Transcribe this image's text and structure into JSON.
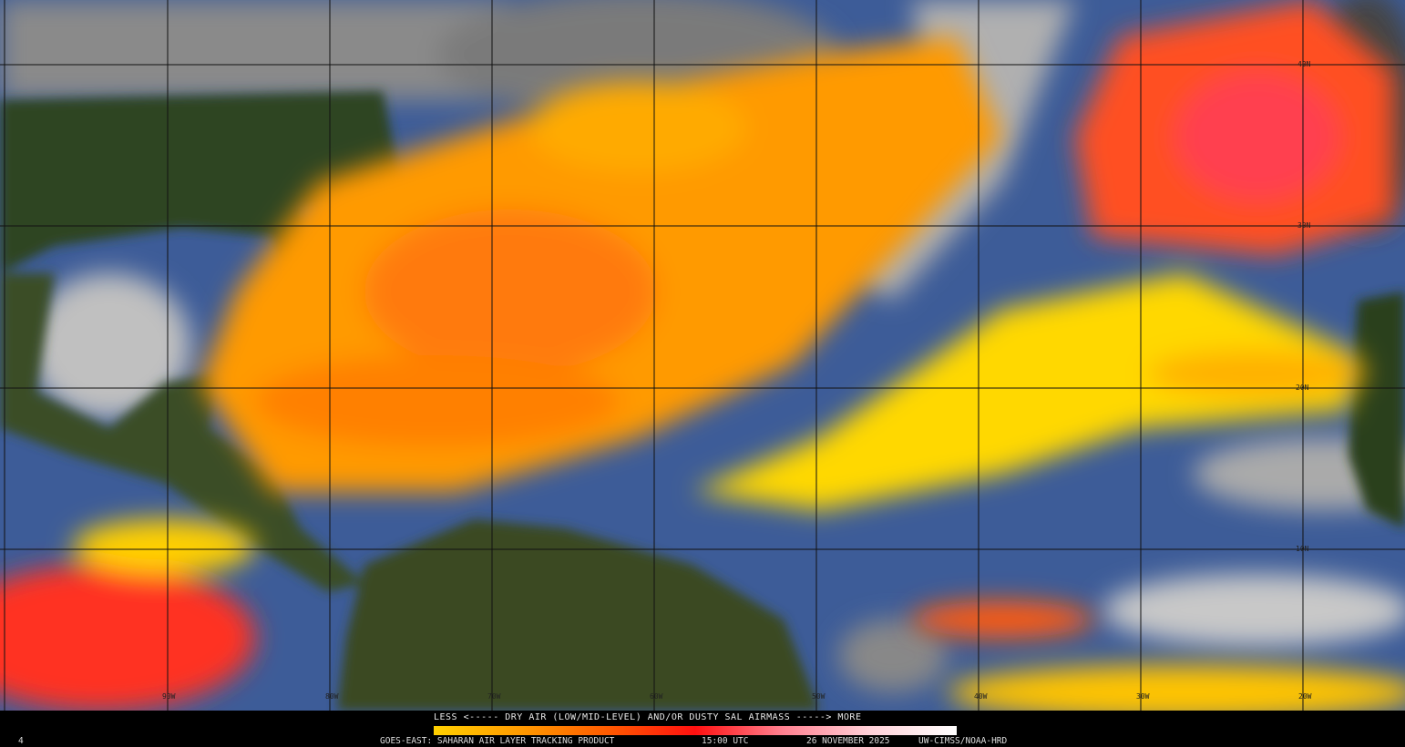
{
  "map": {
    "latitude_labels": [
      "40N",
      "30N",
      "20N",
      "10N"
    ],
    "longitude_labels": [
      "90W",
      "80W",
      "70W",
      "60W",
      "50W",
      "40W",
      "30W",
      "20W"
    ],
    "colors": {
      "ocean": "#3d5c98",
      "land": "#2b3f1c",
      "cloud": "#b8b8b8",
      "sal_low": "#ffd400",
      "sal_mid": "#ff8a00",
      "sal_high": "#ff1a1a",
      "sal_max": "#fff4f6"
    }
  },
  "legend": {
    "title": "LESS <----- DRY AIR (LOW/MID-LEVEL) AND/OR DUSTY SAL AIRMASS -----> MORE",
    "scale_colors": [
      "#ffd000",
      "#ff9a00",
      "#ff5a00",
      "#ff1010",
      "#ff8090",
      "#ffd0d8",
      "#ffffff"
    ]
  },
  "footer": {
    "corner_mark": "4",
    "product": "GOES-EAST: SAHARAN AIR LAYER TRACKING PRODUCT",
    "time": "15:00 UTC",
    "date": "26 NOVEMBER 2025",
    "credit": "UW-CIMSS/NOAA-HRD"
  }
}
